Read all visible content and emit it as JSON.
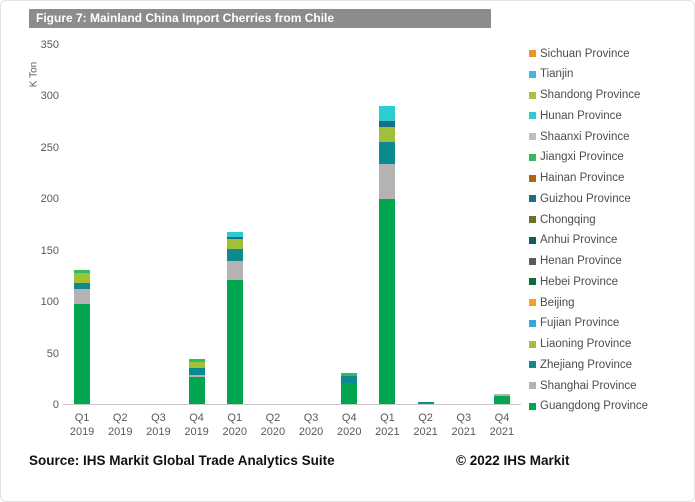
{
  "frame": {
    "title": "Figure 7: Mainland China Import Cherries from Chile"
  },
  "theme": {
    "title_bar_bg": "#8c8c8c",
    "title_text_color": "#ffffff",
    "axis_text_color": "#595959",
    "legend_text_color": "#4d4d4d",
    "baseline_color": "#c9c9c9"
  },
  "chart_data": {
    "type": "bar",
    "stacked": true,
    "title": "Figure 7: Mainland China Import Cherries from Chile",
    "xlabel": "",
    "ylabel": "K Ton",
    "ylim": [
      0,
      350
    ],
    "ytick_step": 50,
    "grid": false,
    "legend_position": "right",
    "categories": [
      "Q1 2019",
      "Q2 2019",
      "Q3 2019",
      "Q4 2019",
      "Q1 2020",
      "Q2 2020",
      "Q3 2020",
      "Q4 2020",
      "Q1 2021",
      "Q2 2021",
      "Q3 2021",
      "Q4 2021"
    ],
    "series_note": "series listed in stack order bottom-to-top; legend shows reverse order (top-to-bottom)",
    "series": [
      {
        "name": "Guangdong Province",
        "color": "#00a650",
        "values": [
          97,
          0,
          0,
          26,
          121,
          0,
          0,
          20,
          199,
          1,
          0,
          8
        ]
      },
      {
        "name": "Shanghai Province",
        "color": "#b3b3b3",
        "values": [
          15,
          0,
          0,
          2,
          18,
          0,
          0,
          0,
          34,
          0,
          0,
          2
        ]
      },
      {
        "name": "Zhejiang Province",
        "color": "#0b8a8f",
        "values": [
          6,
          0,
          0,
          7,
          12,
          0,
          0,
          7,
          22,
          1,
          0,
          0
        ]
      },
      {
        "name": "Liaoning Province",
        "color": "#a2c037",
        "values": [
          9,
          0,
          0,
          6,
          9,
          0,
          0,
          0,
          14,
          0,
          0,
          0
        ]
      },
      {
        "name": "Fujian Province",
        "color": "#35a8e0",
        "values": [
          0,
          0,
          0,
          0,
          0,
          0,
          0,
          0,
          0,
          0,
          0,
          0
        ]
      },
      {
        "name": "Beijing",
        "color": "#f5a31f",
        "values": [
          0,
          0,
          0,
          0,
          0,
          0,
          0,
          0,
          0,
          0,
          0,
          0
        ]
      },
      {
        "name": "Hebei Province",
        "color": "#0f6b3c",
        "values": [
          0,
          0,
          0,
          0,
          0,
          0,
          0,
          0,
          0,
          0,
          0,
          0
        ]
      },
      {
        "name": "Henan Province",
        "color": "#5b5b5b",
        "values": [
          0,
          0,
          0,
          0,
          0,
          0,
          0,
          0,
          0,
          0,
          0,
          0
        ]
      },
      {
        "name": "Anhui Province",
        "color": "#0e5f63",
        "values": [
          0,
          0,
          0,
          0,
          0,
          0,
          0,
          0,
          0,
          0,
          0,
          0
        ]
      },
      {
        "name": "Chongqing",
        "color": "#6f6f28",
        "values": [
          0,
          0,
          0,
          0,
          0,
          0,
          0,
          0,
          0,
          0,
          0,
          0
        ]
      },
      {
        "name": "Guizhou Province",
        "color": "#176e87",
        "values": [
          0,
          0,
          0,
          0,
          2,
          0,
          0,
          0,
          6,
          0,
          0,
          0
        ]
      },
      {
        "name": "Hainan Province",
        "color": "#b36210",
        "values": [
          0,
          0,
          0,
          0,
          0,
          0,
          0,
          0,
          0,
          0,
          0,
          0
        ]
      },
      {
        "name": "Jiangxi Province",
        "color": "#2fbe5f",
        "values": [
          3,
          0,
          0,
          3,
          0,
          0,
          0,
          3,
          0,
          0,
          0,
          0
        ]
      },
      {
        "name": "Shaanxi Province",
        "color": "#bdbdbd",
        "values": [
          0,
          0,
          0,
          0,
          0,
          0,
          0,
          0,
          0,
          0,
          0,
          0
        ]
      },
      {
        "name": "Hunan Province",
        "color": "#2cccd3",
        "values": [
          0,
          0,
          0,
          0,
          5,
          0,
          0,
          0,
          15,
          0,
          0,
          0
        ]
      },
      {
        "name": "Shandong Province",
        "color": "#a9c23f",
        "values": [
          0,
          0,
          0,
          0,
          0,
          0,
          0,
          0,
          0,
          0,
          0,
          0
        ]
      },
      {
        "name": "Tianjin",
        "color": "#3db7e4",
        "values": [
          0,
          0,
          0,
          0,
          0,
          0,
          0,
          0,
          0,
          0,
          0,
          0
        ]
      },
      {
        "name": "Sichuan Province",
        "color": "#f0912d",
        "values": [
          0,
          0,
          0,
          0,
          0,
          0,
          0,
          0,
          0,
          0,
          0,
          0
        ]
      }
    ]
  },
  "footer": {
    "source": "Source: IHS Markit Global Trade Analytics Suite",
    "copyright": "© 2022 IHS Markit"
  }
}
